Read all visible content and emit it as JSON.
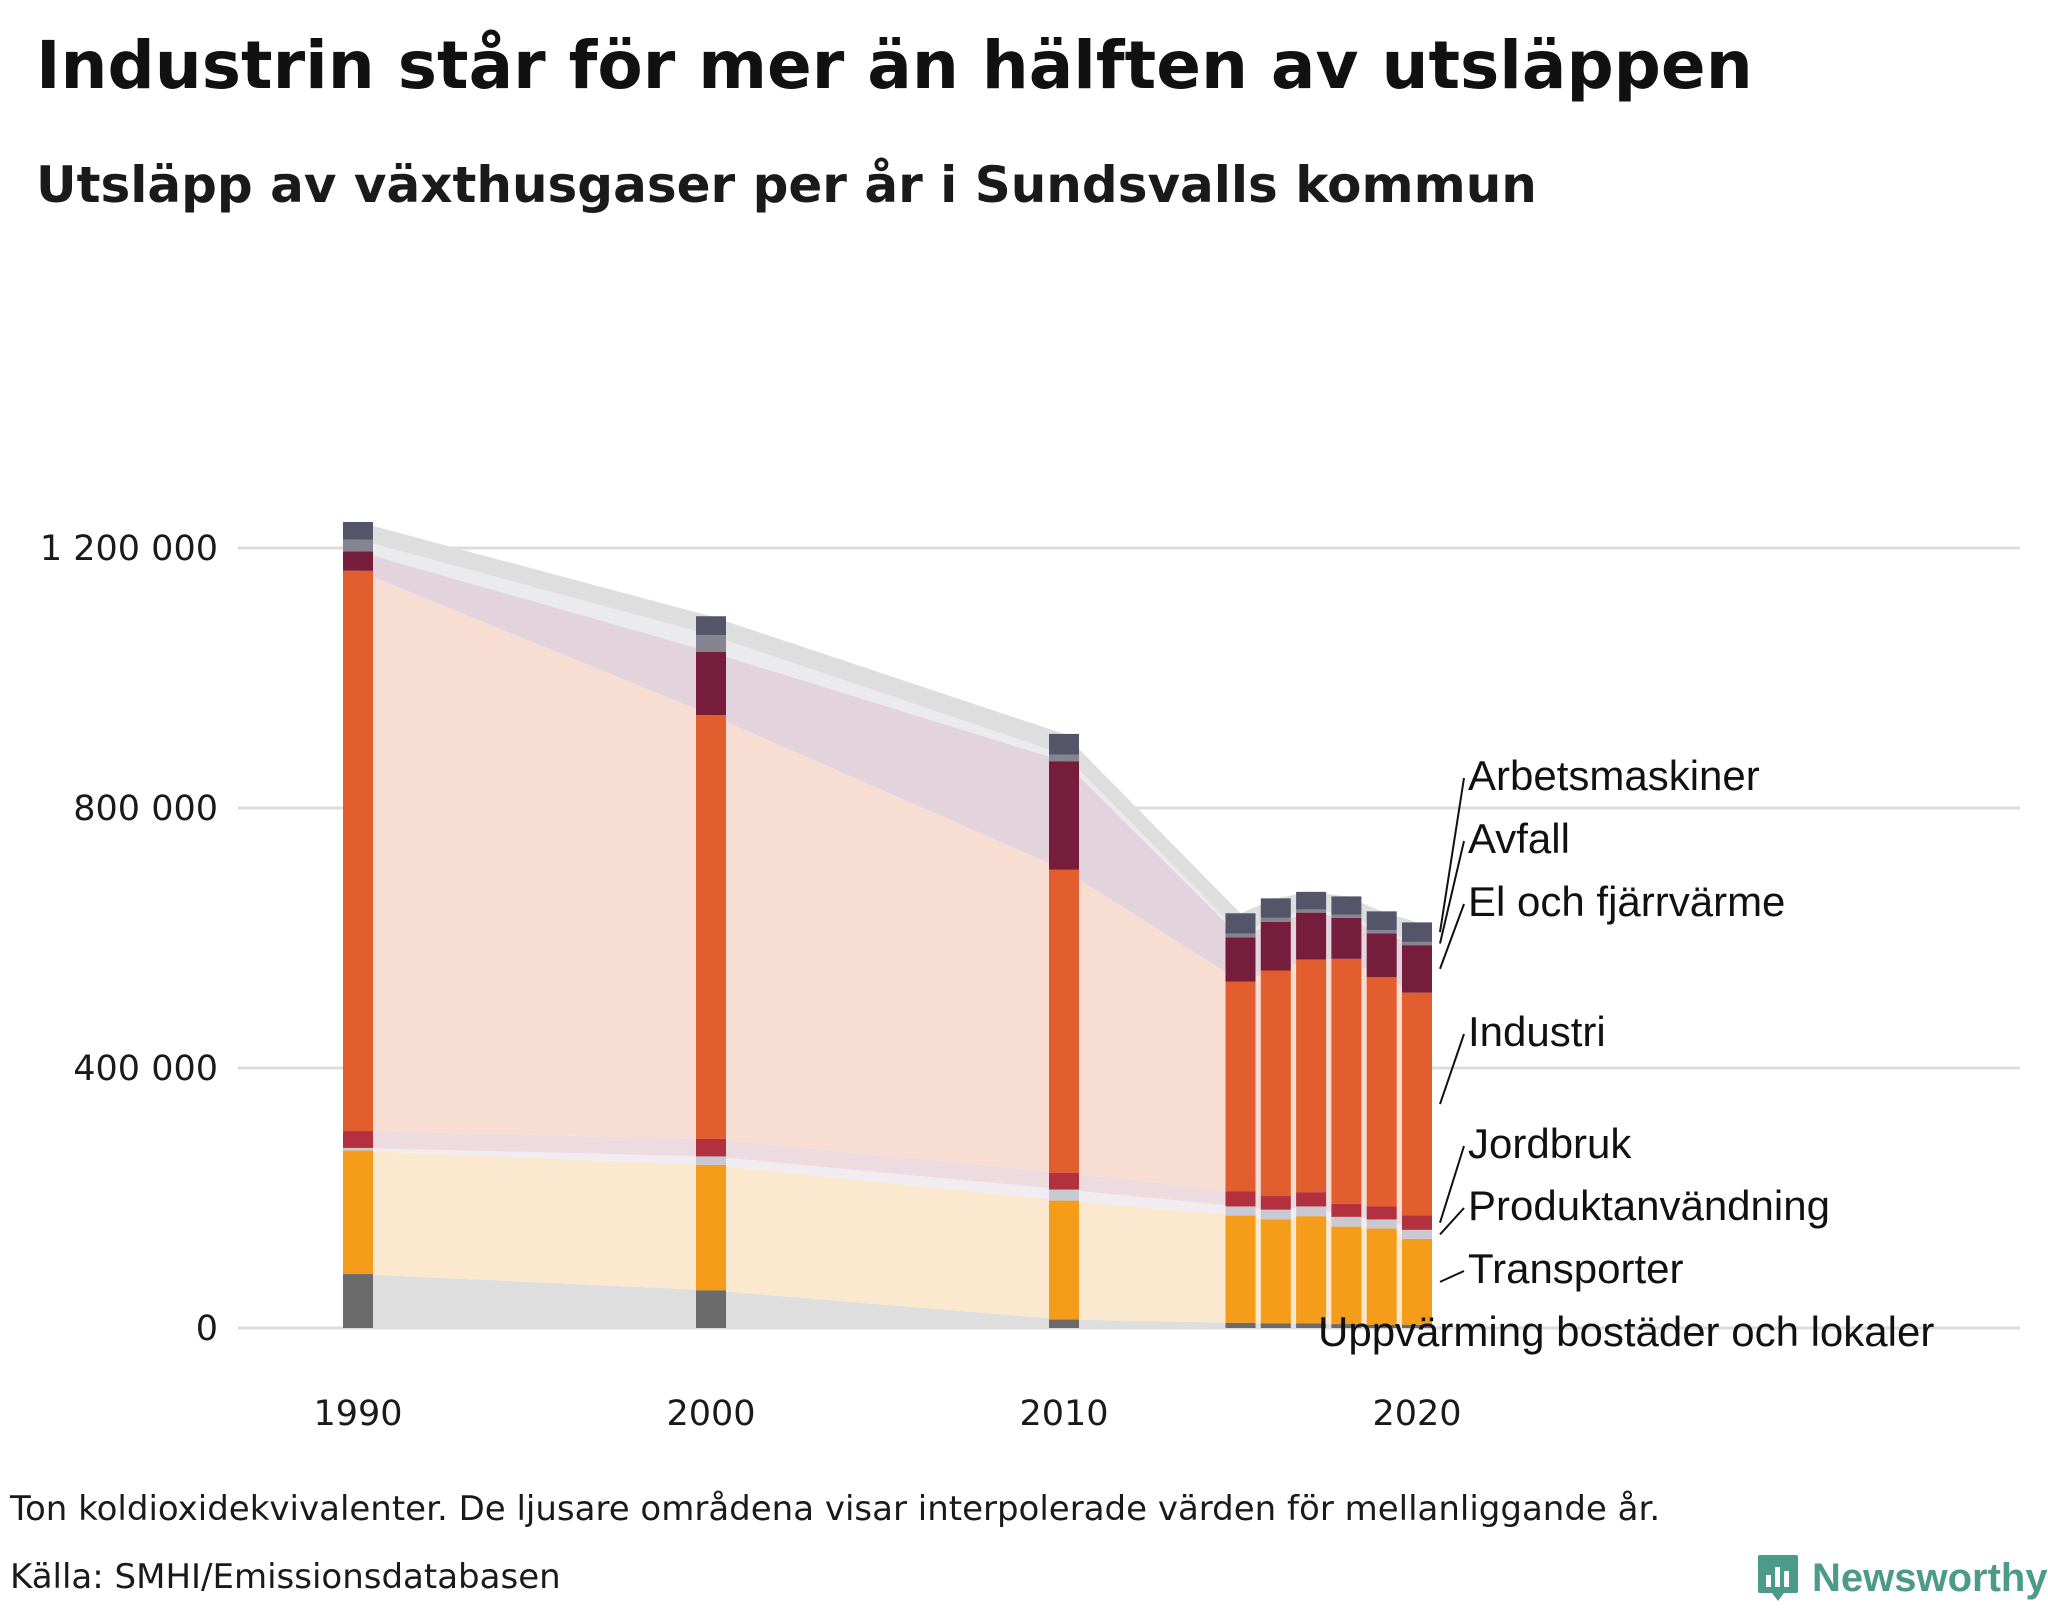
{
  "title": "Industrin står för mer än hälften av utsläppen",
  "subtitle": "Utsläpp av växthusgaser per år i Sundsvalls kommun",
  "footnote": "Ton koldioxidekvivalenter. De ljusare områdena visar interpolerade värden för mellanliggande år.",
  "source": "Källa: SMHI/Emissionsdatabasen",
  "brand": "Newsworthy",
  "chart_data": {
    "type": "bar",
    "stacked": true,
    "categories": [
      "1990",
      "2000",
      "2010",
      "2015",
      "2016",
      "2017",
      "2018",
      "2019",
      "2020"
    ],
    "y_ticks": [
      {
        "value": 0,
        "label": "0"
      },
      {
        "value": 400000,
        "label": "400 000"
      },
      {
        "value": 800000,
        "label": "800 000"
      },
      {
        "value": 1200000,
        "label": "1 200 000"
      }
    ],
    "x_ticks": [
      "1990",
      "2000",
      "2010",
      "2020"
    ],
    "ylim": [
      0,
      1260000
    ],
    "grid": true,
    "series": [
      {
        "name": "Uppvärming bostäder och lokaler",
        "color": "#6b6b6b",
        "values": [
          83000,
          58000,
          13000,
          8000,
          7000,
          7000,
          6000,
          5000,
          5000
        ]
      },
      {
        "name": "Transporter",
        "color": "#f59c1a",
        "values": [
          190000,
          193000,
          183000,
          165000,
          160000,
          165000,
          150000,
          148000,
          132000
        ]
      },
      {
        "name": "Produktanvändning",
        "color": "#c9c9d4",
        "values": [
          4000,
          13000,
          17000,
          14000,
          15000,
          15000,
          15000,
          14000,
          14000
        ]
      },
      {
        "name": "Jordbruk",
        "color": "#b3303f",
        "values": [
          26000,
          27000,
          26000,
          23000,
          21000,
          22000,
          20000,
          20000,
          22000
        ]
      },
      {
        "name": "Industri",
        "color": "#e25e2e",
        "values": [
          862000,
          652000,
          466000,
          323000,
          347000,
          358000,
          377000,
          353000,
          343000
        ]
      },
      {
        "name": "El och fjärrvärme",
        "color": "#761d3c",
        "values": [
          30000,
          97000,
          167000,
          68000,
          75000,
          72000,
          63000,
          67000,
          73000
        ]
      },
      {
        "name": "Avfall",
        "color": "#85858f",
        "values": [
          18000,
          26000,
          10000,
          6000,
          6000,
          5000,
          5000,
          5000,
          5000
        ]
      },
      {
        "name": "Arbetsmaskiner",
        "color": "#55556a",
        "values": [
          27000,
          29000,
          32000,
          31000,
          30000,
          27000,
          28000,
          29000,
          30000
        ]
      }
    ],
    "band_colors": [
      "#dedede",
      "#fbe9cf",
      "#f0ecf1",
      "#eddbe0",
      "#f8ddd3",
      "#e3d3dc",
      "#ebebee",
      "#dedede"
    ],
    "label_order": [
      "Arbetsmaskiner",
      "Avfall",
      "El och fjärrvärme",
      "Industri",
      "Jordbruk",
      "Produktanvändning",
      "Transporter",
      "Uppvärming bostäder och lokaler"
    ]
  }
}
